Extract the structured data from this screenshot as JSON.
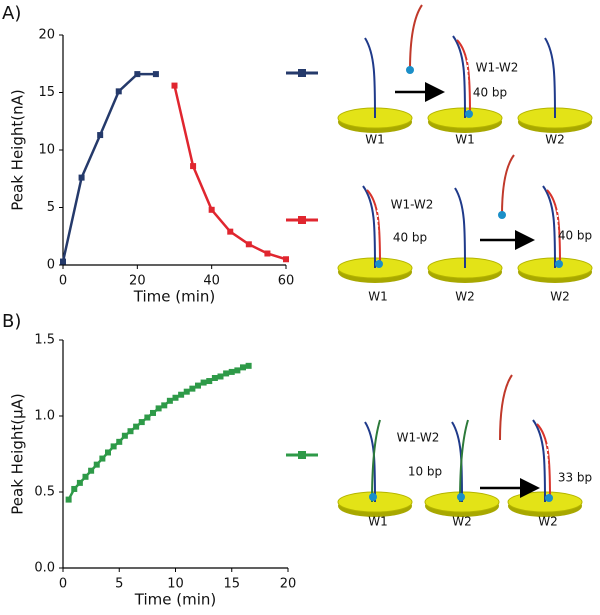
{
  "panels": [
    "A)",
    "B)"
  ],
  "chart_data": [
    {
      "type": "line",
      "xlabel": "Time (min)",
      "ylabel": "Peak Height(nA)",
      "xlim": [
        0,
        60
      ],
      "xticks": [
        0,
        20,
        40,
        60
      ],
      "ylim": [
        0,
        20
      ],
      "yticks": [
        0,
        5,
        10,
        15,
        20
      ],
      "series": [
        {
          "color": "#253a6b",
          "x": [
            0,
            5,
            10,
            15,
            20,
            25
          ],
          "values": [
            0.3,
            7.6,
            11.3,
            15.1,
            16.6,
            16.6
          ]
        },
        {
          "color": "#e0262f",
          "x": [
            30,
            35,
            40,
            45,
            50,
            55,
            60
          ],
          "values": [
            15.6,
            8.6,
            4.8,
            2.9,
            1.8,
            1.0,
            0.5
          ]
        }
      ]
    },
    {
      "type": "line",
      "xlabel": "Time (min)",
      "ylabel": "Peak Height(μA)",
      "xlim": [
        0,
        20
      ],
      "xticks": [
        0,
        5,
        10,
        15,
        20
      ],
      "ylim": [
        0,
        1.5
      ],
      "yticks": [
        {
          "value": 0,
          "label": "0.0"
        },
        0.5,
        {
          "value": 1,
          "label": "1.0"
        },
        1.5
      ],
      "series": [
        {
          "color": "#2e9a48",
          "x": [
            0.5,
            1,
            1.5,
            2,
            2.5,
            3,
            3.5,
            4,
            4.5,
            5,
            5.5,
            6,
            6.5,
            7,
            7.5,
            8,
            8.5,
            9,
            9.5,
            10,
            10.5,
            11,
            11.5,
            12,
            12.5,
            13,
            13.5,
            14,
            14.5,
            15,
            15.5,
            16,
            16.5
          ],
          "values": [
            0.45,
            0.52,
            0.56,
            0.6,
            0.64,
            0.68,
            0.72,
            0.76,
            0.8,
            0.83,
            0.87,
            0.9,
            0.93,
            0.96,
            0.99,
            1.02,
            1.05,
            1.07,
            1.1,
            1.12,
            1.14,
            1.16,
            1.18,
            1.2,
            1.22,
            1.23,
            1.25,
            1.26,
            1.28,
            1.29,
            1.3,
            1.32,
            1.33
          ]
        }
      ]
    }
  ],
  "schemes": [
    {
      "texts": [
        "W1",
        "W1",
        "W2",
        "W1-W2",
        "40 bp"
      ]
    },
    {
      "texts": [
        "W1",
        "W2",
        "W2",
        "W1-W2",
        "40 bp",
        "40 bp"
      ]
    },
    {
      "texts": [
        "W1",
        "W2",
        "W2",
        "W1-W2",
        "10 bp",
        "33 bp"
      ]
    }
  ]
}
